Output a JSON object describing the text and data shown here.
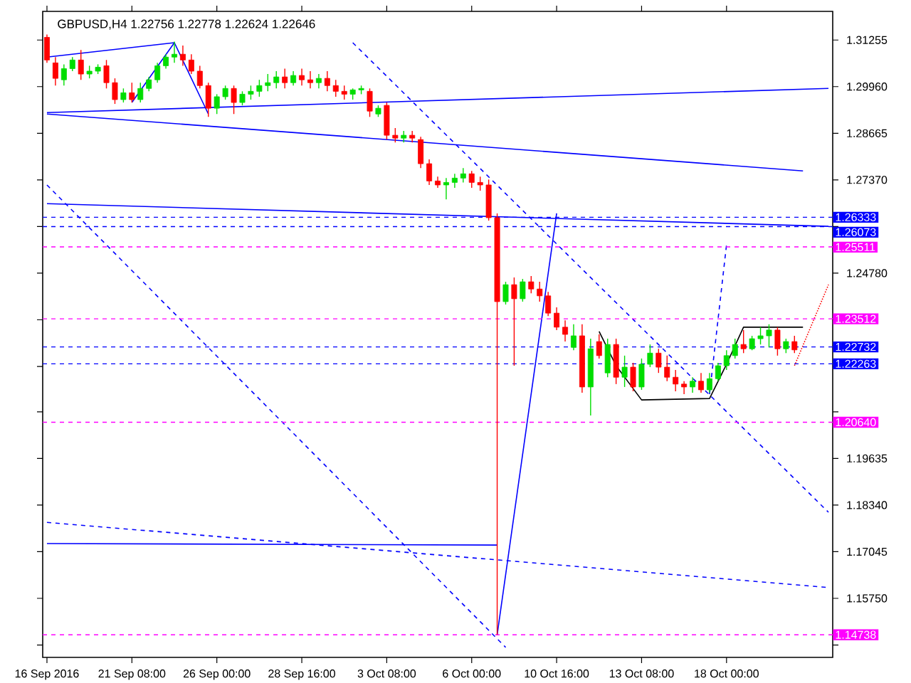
{
  "chart_data": {
    "type": "candlestick",
    "title": "GBPUSD,H4  1.22756 1.22778 1.22624 1.22646",
    "categories": [
      "16 Sep 2016",
      null,
      null,
      null,
      null,
      null,
      null,
      null,
      null,
      null,
      "21 Sep 08:00",
      null,
      null,
      null,
      null,
      null,
      null,
      null,
      null,
      null,
      "26 Sep 00:00",
      null,
      null,
      null,
      null,
      null,
      null,
      null,
      null,
      null,
      "28 Sep 16:00",
      null,
      null,
      null,
      null,
      null,
      null,
      null,
      null,
      null,
      "3 Oct 08:00",
      null,
      null,
      null,
      null,
      null,
      null,
      null,
      null,
      null,
      "6 Oct 00:00",
      null,
      null,
      null,
      null,
      null,
      null,
      null,
      null,
      null,
      "10 Oct 16:00",
      null,
      null,
      null,
      null,
      null,
      null,
      null,
      null,
      null,
      "13 Oct 08:00",
      null,
      null,
      null,
      null,
      null,
      null,
      null,
      null,
      null,
      "18 Oct 00:00",
      null,
      null,
      null,
      null,
      null,
      null,
      null,
      null,
      null,
      null,
      null,
      null
    ],
    "ohlc": [
      [
        1.3133,
        1.3141,
        1.3062,
        1.307
      ],
      [
        1.3062,
        1.3078,
        1.2999,
        1.3019
      ],
      [
        1.3015,
        1.3058,
        1.2999,
        1.3046
      ],
      [
        1.3046,
        1.3078,
        1.3039,
        1.307
      ],
      [
        1.307,
        1.3098,
        1.3015,
        1.3031
      ],
      [
        1.3031,
        1.3054,
        1.3019,
        1.3039
      ],
      [
        1.3039,
        1.3058,
        1.3031,
        1.305
      ],
      [
        1.3054,
        1.307,
        1.2991,
        1.3007
      ],
      [
        1.3007,
        1.3019,
        1.2948,
        1.296
      ],
      [
        1.296,
        1.2991,
        1.2952,
        1.2979
      ],
      [
        1.2979,
        1.3007,
        1.2952,
        1.296
      ],
      [
        1.296,
        1.3007,
        1.2952,
        1.2991
      ],
      [
        1.2991,
        1.3023,
        1.2983,
        1.3015
      ],
      [
        1.3015,
        1.3062,
        1.3007,
        1.3054
      ],
      [
        1.3054,
        1.3086,
        1.3046,
        1.3078
      ],
      [
        1.3078,
        1.3121,
        1.3062,
        1.3086
      ],
      [
        1.3086,
        1.311,
        1.3054,
        1.307
      ],
      [
        1.307,
        1.3086,
        1.3031,
        1.3039
      ],
      [
        1.3039,
        1.3054,
        1.2991,
        1.2999
      ],
      [
        1.2999,
        1.3007,
        1.2912,
        1.2936
      ],
      [
        1.2936,
        1.2975,
        1.292,
        1.2968
      ],
      [
        1.2968,
        1.2999,
        1.296,
        1.2991
      ],
      [
        1.2991,
        1.2999,
        1.292,
        1.2952
      ],
      [
        1.2952,
        1.2983,
        1.2944,
        1.2975
      ],
      [
        1.2975,
        1.2999,
        1.296,
        1.2983
      ],
      [
        1.2983,
        1.3015,
        1.2968,
        1.2999
      ],
      [
        1.2999,
        1.3031,
        1.2983,
        1.3007
      ],
      [
        1.3007,
        1.3039,
        1.2991,
        1.3023
      ],
      [
        1.3023,
        1.3046,
        1.2991,
        1.3007
      ],
      [
        1.3007,
        1.3039,
        1.2999,
        1.3027
      ],
      [
        1.3027,
        1.3046,
        1.2999,
        1.3015
      ],
      [
        1.3015,
        1.3039,
        1.2991,
        1.3007
      ],
      [
        1.3007,
        1.3031,
        1.2991,
        1.3019
      ],
      [
        1.3019,
        1.3039,
        1.2983,
        1.2999
      ],
      [
        1.2999,
        1.3015,
        1.2968,
        1.2983
      ],
      [
        1.2983,
        1.2999,
        1.296,
        1.2975
      ],
      [
        1.2975,
        1.2991,
        1.296,
        1.2987
      ],
      [
        1.2987,
        1.2999,
        1.2975,
        1.2991
      ],
      [
        1.2983,
        1.2991,
        1.2912,
        1.2928
      ],
      [
        1.292,
        1.2944,
        1.2912,
        1.2936
      ],
      [
        1.2944,
        1.2952,
        1.2849,
        1.2861
      ],
      [
        1.2861,
        1.2881,
        1.2841,
        1.2853
      ],
      [
        1.2853,
        1.2873,
        1.2841,
        1.2861
      ],
      [
        1.2861,
        1.2873,
        1.2841,
        1.2853
      ],
      [
        1.2849,
        1.2857,
        1.277,
        1.2782
      ],
      [
        1.2782,
        1.2794,
        1.2723,
        1.2734
      ],
      [
        1.2734,
        1.2746,
        1.2715,
        1.2723
      ],
      [
        1.2723,
        1.2742,
        1.2683,
        1.273
      ],
      [
        1.273,
        1.2754,
        1.2715,
        1.2742
      ],
      [
        1.2742,
        1.277,
        1.273,
        1.2754
      ],
      [
        1.2754,
        1.2762,
        1.2715,
        1.273
      ],
      [
        1.273,
        1.2746,
        1.2707,
        1.2723
      ],
      [
        1.2723,
        1.2738,
        1.2624,
        1.2632
      ],
      [
        1.2632,
        1.2644,
        1.1474,
        1.2399
      ],
      [
        1.2399,
        1.2454,
        1.2391,
        1.2446
      ],
      [
        1.2446,
        1.2466,
        1.2221,
        1.2407
      ],
      [
        1.2407,
        1.2462,
        1.2399,
        1.2454
      ],
      [
        1.2454,
        1.247,
        1.2422,
        1.2434
      ],
      [
        1.2434,
        1.2454,
        1.2399,
        1.2415
      ],
      [
        1.2415,
        1.2426,
        1.2359,
        1.2367
      ],
      [
        1.2367,
        1.2383,
        1.232,
        1.2328
      ],
      [
        1.2328,
        1.2347,
        1.2288,
        1.2308
      ],
      [
        1.2272,
        1.2336,
        1.2264,
        1.2304
      ],
      [
        1.2304,
        1.2336,
        1.2146,
        1.2162
      ],
      [
        1.2162,
        1.2296,
        1.2083,
        1.2268
      ],
      [
        1.2288,
        1.2308,
        1.2241,
        1.2249
      ],
      [
        1.2201,
        1.2296,
        1.2189,
        1.228
      ],
      [
        1.228,
        1.2296,
        1.217,
        1.2189
      ],
      [
        1.2189,
        1.2249,
        1.2162,
        1.2217
      ],
      [
        1.2217,
        1.2229,
        1.215,
        1.2162
      ],
      [
        1.2162,
        1.2241,
        1.2154,
        1.2225
      ],
      [
        1.2225,
        1.228,
        1.2217,
        1.2256
      ],
      [
        1.2256,
        1.2268,
        1.2201,
        1.2217
      ],
      [
        1.2217,
        1.2249,
        1.2178,
        1.2189
      ],
      [
        1.2189,
        1.2209,
        1.215,
        1.217
      ],
      [
        1.217,
        1.2178,
        1.2142,
        1.2162
      ],
      [
        1.2162,
        1.2189,
        1.2146,
        1.2178
      ],
      [
        1.2178,
        1.2201,
        1.2146,
        1.2154
      ],
      [
        1.2154,
        1.2201,
        1.2146,
        1.2185
      ],
      [
        1.2185,
        1.2229,
        1.2178,
        1.2221
      ],
      [
        1.2221,
        1.2264,
        1.2209,
        1.2249
      ],
      [
        1.2249,
        1.2296,
        1.2241,
        1.228
      ],
      [
        1.228,
        1.232,
        1.2256,
        1.2268
      ],
      [
        1.2268,
        1.2304,
        1.2264,
        1.2296
      ],
      [
        1.2296,
        1.2328,
        1.228,
        1.2304
      ],
      [
        1.2304,
        1.2336,
        1.2272,
        1.232
      ],
      [
        1.232,
        1.2328,
        1.2249,
        1.2268
      ],
      [
        1.2268,
        1.2296,
        1.2256,
        1.2288
      ],
      [
        1.2288,
        1.2304,
        1.2256,
        1.2265
      ],
      null,
      null,
      null,
      null
    ],
    "series": [
      {
        "type": "line",
        "color": "#0000ff",
        "line_style": "solid",
        "values": [
          1.3078,
          null,
          null,
          null,
          null,
          null,
          null,
          null,
          null,
          null,
          null,
          null,
          null,
          null,
          null,
          1.3118,
          null,
          null,
          null,
          null,
          null,
          null,
          null,
          null,
          null,
          null,
          null,
          null,
          null,
          null,
          null,
          null,
          null,
          null,
          null,
          null,
          null,
          null,
          null,
          null,
          null,
          null,
          null,
          null,
          null,
          null,
          null,
          null,
          null,
          null,
          null,
          null,
          null,
          null,
          null,
          null,
          null,
          null,
          null,
          null,
          null,
          null,
          null,
          null,
          null,
          null,
          null,
          null,
          null,
          null,
          null,
          null,
          null,
          null,
          null,
          null,
          null,
          null,
          null,
          null,
          null,
          null,
          null,
          null,
          null,
          null,
          null,
          null,
          null,
          null,
          null,
          null,
          null
        ]
      },
      {
        "type": "line",
        "color": "#0000ff",
        "line_style": "solid",
        "values": [
          null,
          null,
          null,
          null,
          null,
          null,
          null,
          null,
          null,
          null,
          1.2952,
          null,
          null,
          null,
          null,
          1.3118,
          null,
          null,
          null,
          1.292,
          null,
          null,
          null,
          null,
          null,
          null,
          null,
          null,
          null,
          null,
          null,
          null,
          null,
          null,
          null,
          null,
          null,
          null,
          null,
          null,
          null,
          null,
          null,
          null,
          null,
          null,
          null,
          null,
          null,
          null,
          null,
          null,
          null,
          null,
          null,
          null,
          null,
          null,
          null,
          null,
          null,
          null,
          null,
          null,
          null,
          null,
          null,
          null,
          null,
          null,
          null,
          null,
          null,
          null,
          null,
          null,
          null,
          null,
          null,
          null,
          null,
          null,
          null,
          null,
          null,
          null,
          null,
          null,
          null,
          null,
          null,
          null,
          null
        ]
      },
      {
        "type": "line",
        "color": "#0000ff",
        "line_style": "solid",
        "values": [
          1.2924,
          null,
          null,
          null,
          null,
          null,
          null,
          null,
          null,
          null,
          null,
          null,
          null,
          null,
          null,
          null,
          null,
          null,
          null,
          null,
          null,
          null,
          null,
          null,
          null,
          null,
          null,
          null,
          null,
          null,
          null,
          null,
          null,
          null,
          null,
          null,
          null,
          null,
          null,
          null,
          null,
          null,
          null,
          null,
          null,
          null,
          null,
          null,
          null,
          null,
          null,
          null,
          null,
          null,
          null,
          null,
          null,
          null,
          null,
          null,
          null,
          null,
          null,
          null,
          null,
          null,
          null,
          null,
          null,
          null,
          null,
          null,
          null,
          null,
          null,
          null,
          null,
          null,
          null,
          null,
          null,
          null,
          null,
          null,
          null,
          null,
          null,
          null,
          null,
          null,
          null,
          null,
          1.2991
        ]
      },
      {
        "type": "line",
        "color": "#0000ff",
        "line_style": "solid",
        "values": [
          1.292,
          null,
          null,
          null,
          null,
          null,
          null,
          null,
          null,
          null,
          null,
          null,
          null,
          null,
          null,
          null,
          null,
          null,
          null,
          null,
          null,
          null,
          null,
          null,
          null,
          null,
          null,
          null,
          null,
          null,
          null,
          null,
          null,
          null,
          null,
          null,
          null,
          null,
          null,
          null,
          null,
          null,
          null,
          null,
          null,
          null,
          null,
          null,
          null,
          null,
          null,
          null,
          null,
          null,
          null,
          null,
          null,
          null,
          null,
          null,
          null,
          null,
          null,
          null,
          null,
          null,
          null,
          null,
          null,
          null,
          null,
          null,
          null,
          null,
          null,
          null,
          null,
          null,
          null,
          null,
          null,
          null,
          null,
          null,
          null,
          null,
          null,
          null,
          null,
          1.2762,
          null,
          null,
          null
        ]
      },
      {
        "type": "line",
        "color": "#0000ff",
        "line_style": "solid",
        "values": [
          1.2671,
          null,
          null,
          null,
          null,
          null,
          null,
          null,
          null,
          null,
          null,
          null,
          null,
          null,
          null,
          null,
          null,
          null,
          null,
          null,
          null,
          null,
          null,
          null,
          null,
          null,
          null,
          null,
          null,
          null,
          null,
          null,
          null,
          null,
          null,
          null,
          null,
          null,
          null,
          null,
          null,
          null,
          null,
          null,
          null,
          null,
          null,
          null,
          null,
          null,
          null,
          null,
          null,
          null,
          null,
          null,
          null,
          null,
          null,
          null,
          null,
          null,
          null,
          null,
          null,
          null,
          null,
          null,
          null,
          null,
          null,
          null,
          null,
          null,
          null,
          null,
          null,
          null,
          null,
          null,
          null,
          null,
          null,
          null,
          null,
          null,
          null,
          null,
          null,
          null,
          null,
          null,
          1.2608
        ]
      },
      {
        "type": "line",
        "color": "#0000ff",
        "line_style": "solid",
        "values": [
          null,
          null,
          null,
          null,
          null,
          null,
          null,
          null,
          null,
          null,
          null,
          null,
          null,
          null,
          null,
          null,
          null,
          null,
          null,
          null,
          null,
          null,
          null,
          null,
          null,
          null,
          null,
          null,
          null,
          null,
          null,
          null,
          null,
          null,
          null,
          null,
          null,
          null,
          null,
          null,
          null,
          null,
          null,
          null,
          null,
          null,
          null,
          null,
          null,
          null,
          null,
          null,
          null,
          1.1474,
          null,
          null,
          null,
          null,
          null,
          null,
          1.2644,
          null,
          null,
          null,
          null,
          null,
          null,
          null,
          null,
          null,
          null,
          null,
          null,
          null,
          null,
          null,
          null,
          null,
          null,
          null,
          null,
          null,
          null,
          null,
          null,
          null,
          null,
          null,
          null,
          null,
          null,
          null,
          null
        ]
      },
      {
        "type": "line",
        "color": "#0000ff",
        "line_style": "solid",
        "values": [
          1.1727,
          null,
          null,
          null,
          null,
          null,
          null,
          null,
          null,
          null,
          null,
          null,
          null,
          null,
          null,
          null,
          null,
          null,
          null,
          null,
          null,
          null,
          null,
          null,
          null,
          null,
          null,
          null,
          null,
          null,
          null,
          null,
          null,
          null,
          null,
          null,
          null,
          null,
          null,
          null,
          null,
          null,
          null,
          null,
          null,
          null,
          null,
          null,
          null,
          null,
          null,
          null,
          null,
          1.1723,
          null,
          null,
          null,
          null,
          null,
          null,
          null,
          null,
          null,
          null,
          null,
          null,
          null,
          null,
          null,
          null,
          null,
          null,
          null,
          null,
          null,
          null,
          null,
          null,
          null,
          null,
          null,
          null,
          null,
          null,
          null,
          null,
          null,
          null,
          null,
          null,
          null,
          null,
          null
        ]
      },
      {
        "type": "line",
        "color": "#0000ff",
        "line_style": "dashed",
        "values": [
          1.1786,
          null,
          null,
          null,
          null,
          null,
          null,
          null,
          null,
          null,
          null,
          null,
          null,
          null,
          null,
          null,
          null,
          null,
          null,
          null,
          null,
          null,
          null,
          null,
          null,
          null,
          null,
          null,
          null,
          null,
          null,
          null,
          null,
          null,
          null,
          null,
          null,
          null,
          null,
          null,
          null,
          null,
          null,
          null,
          null,
          null,
          null,
          null,
          null,
          null,
          null,
          null,
          null,
          null,
          null,
          null,
          null,
          null,
          null,
          null,
          null,
          null,
          null,
          null,
          null,
          null,
          null,
          null,
          null,
          null,
          null,
          null,
          null,
          null,
          null,
          null,
          null,
          null,
          null,
          null,
          null,
          null,
          null,
          null,
          null,
          null,
          null,
          null,
          null,
          null,
          null,
          null,
          1.1605
        ]
      },
      {
        "type": "line",
        "color": "#0000ff",
        "line_style": "dashed",
        "values": [
          1.2723,
          null,
          null,
          null,
          null,
          null,
          null,
          null,
          null,
          null,
          null,
          null,
          null,
          null,
          null,
          null,
          null,
          null,
          null,
          null,
          null,
          null,
          null,
          null,
          null,
          null,
          null,
          null,
          null,
          null,
          null,
          null,
          null,
          null,
          null,
          null,
          null,
          null,
          null,
          null,
          null,
          null,
          null,
          null,
          null,
          null,
          null,
          null,
          null,
          null,
          null,
          null,
          null,
          null,
          1.1439,
          null,
          null,
          null,
          null,
          null,
          null,
          null,
          null,
          null,
          null,
          null,
          null,
          null,
          null,
          null,
          null,
          null,
          null,
          null,
          null,
          null,
          null,
          null,
          null,
          null,
          null,
          null,
          null,
          null,
          null,
          null,
          null,
          null,
          null,
          null,
          null,
          null,
          null
        ]
      },
      {
        "type": "line",
        "color": "#0000ff",
        "line_style": "dashed",
        "values": [
          null,
          null,
          null,
          null,
          null,
          null,
          null,
          null,
          null,
          null,
          null,
          null,
          null,
          null,
          null,
          null,
          null,
          null,
          null,
          null,
          null,
          null,
          null,
          null,
          null,
          null,
          null,
          null,
          null,
          null,
          null,
          null,
          null,
          null,
          null,
          null,
          1.3118,
          null,
          null,
          null,
          null,
          null,
          null,
          null,
          null,
          null,
          null,
          null,
          null,
          null,
          null,
          null,
          null,
          null,
          null,
          null,
          null,
          null,
          null,
          null,
          null,
          null,
          null,
          null,
          null,
          null,
          null,
          null,
          null,
          null,
          null,
          null,
          null,
          null,
          null,
          null,
          null,
          null,
          null,
          null,
          null,
          null,
          null,
          null,
          null,
          null,
          null,
          null,
          null,
          null,
          null,
          null,
          1.1814
        ]
      },
      {
        "type": "line",
        "color": "#0000ff",
        "line_style": "dashed",
        "values": [
          null,
          null,
          null,
          null,
          null,
          null,
          null,
          null,
          null,
          null,
          null,
          null,
          null,
          null,
          null,
          null,
          null,
          null,
          null,
          null,
          null,
          null,
          null,
          null,
          null,
          null,
          null,
          null,
          null,
          null,
          null,
          null,
          null,
          null,
          null,
          null,
          null,
          null,
          null,
          null,
          null,
          null,
          null,
          null,
          null,
          null,
          null,
          null,
          null,
          null,
          null,
          null,
          null,
          null,
          null,
          null,
          null,
          null,
          null,
          null,
          null,
          null,
          null,
          null,
          null,
          null,
          null,
          null,
          null,
          null,
          null,
          null,
          null,
          null,
          null,
          null,
          null,
          null,
          1.2142,
          null,
          1.2557,
          null,
          null,
          null,
          null,
          null,
          null,
          null,
          null,
          null,
          null,
          null,
          null
        ]
      },
      {
        "type": "line",
        "color": "#000000",
        "line_style": "solid",
        "values": [
          null,
          null,
          null,
          null,
          null,
          null,
          null,
          null,
          null,
          null,
          null,
          null,
          null,
          null,
          null,
          null,
          null,
          null,
          null,
          null,
          null,
          null,
          null,
          null,
          null,
          null,
          null,
          null,
          null,
          null,
          null,
          null,
          null,
          null,
          null,
          null,
          null,
          null,
          null,
          null,
          null,
          null,
          null,
          null,
          null,
          null,
          null,
          null,
          null,
          null,
          null,
          null,
          null,
          null,
          null,
          null,
          null,
          null,
          null,
          null,
          null,
          null,
          null,
          null,
          null,
          1.2316,
          null,
          1.2221,
          null,
          null,
          1.2126,
          null,
          null,
          null,
          null,
          null,
          null,
          null,
          1.213,
          null,
          1.2225,
          null,
          1.2328,
          null,
          null,
          null,
          null,
          null,
          null,
          1.2328,
          null,
          null,
          null
        ]
      },
      {
        "type": "line",
        "color": "#ff0000",
        "line_style": "dotted",
        "values": [
          null,
          null,
          null,
          null,
          null,
          null,
          null,
          null,
          null,
          null,
          null,
          null,
          null,
          null,
          null,
          null,
          null,
          null,
          null,
          null,
          null,
          null,
          null,
          null,
          null,
          null,
          null,
          null,
          null,
          null,
          null,
          null,
          null,
          null,
          null,
          null,
          null,
          null,
          null,
          null,
          null,
          null,
          null,
          null,
          null,
          null,
          null,
          null,
          null,
          null,
          null,
          null,
          null,
          null,
          null,
          null,
          null,
          null,
          null,
          null,
          null,
          null,
          null,
          null,
          null,
          null,
          null,
          null,
          null,
          null,
          null,
          null,
          null,
          null,
          null,
          null,
          null,
          null,
          null,
          null,
          null,
          null,
          null,
          null,
          null,
          null,
          null,
          null,
          1.2221,
          null,
          null,
          null,
          1.2446
        ]
      }
    ],
    "ylim": [
      1.1411,
      1.3205
    ],
    "yticks": [
      1.31255,
      {
        "value": 1.2996,
        "label": "1.29960"
      },
      1.28665,
      {
        "value": 1.2737,
        "label": "1.27370"
      },
      {
        "value": 1.26075,
        "label": null
      },
      {
        "value": 1.2478,
        "label": "1.24780"
      },
      {
        "value": 1.23485,
        "label": null
      },
      {
        "value": 1.2219,
        "label": null
      },
      {
        "value": 1.2093,
        "label": null
      },
      1.19635,
      {
        "value": 1.1834,
        "label": "1.18340"
      },
      1.17045,
      {
        "value": 1.1575,
        "label": "1.15750"
      },
      {
        "value": 1.14455,
        "label": null
      }
    ],
    "ref_lines": [
      {
        "axis": "y",
        "value": 1.26333,
        "label": "1.26333",
        "color": "#0000ff",
        "line_style": "dashed"
      },
      {
        "axis": "y",
        "value": 1.26073,
        "label": "1.26073",
        "color": "#0000ff",
        "line_style": "dashed"
      },
      {
        "axis": "y",
        "value": 1.25511,
        "label": "1.25511",
        "color": "#ff00ff",
        "line_style": "dashed"
      },
      {
        "axis": "y",
        "value": 1.23512,
        "label": "1.23512",
        "color": "#ff00ff",
        "line_style": "dashed"
      },
      {
        "axis": "y",
        "value": 1.22732,
        "label": "1.22732",
        "color": "#0000ff",
        "line_style": "dashed"
      },
      {
        "axis": "y",
        "value": 1.22263,
        "label": "1.22263",
        "color": "#0000ff",
        "line_style": "dashed"
      },
      {
        "axis": "y",
        "value": 1.2064,
        "label": "1.20640",
        "color": "#ff00ff",
        "line_style": "dashed"
      },
      {
        "axis": "y",
        "value": 1.14738,
        "label": "1.14738",
        "color": "#ff00ff",
        "line_style": "dashed"
      }
    ],
    "grid": false
  }
}
